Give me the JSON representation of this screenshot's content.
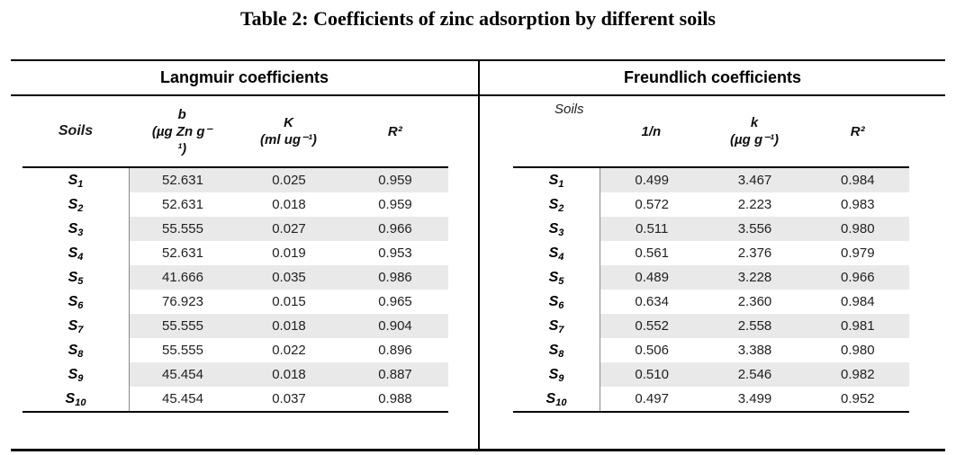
{
  "title": "Table 2: Coefficients of zinc adsorption by different soils",
  "langmuir": {
    "section_title": "Langmuir coefficients",
    "headers": {
      "soils": "Soils",
      "b": [
        "b",
        "(µg Zn g⁻",
        "¹)"
      ],
      "K": [
        "K",
        "(ml ug⁻¹)"
      ],
      "r2": "R²"
    },
    "rows": [
      {
        "soil": "S",
        "sub": "1",
        "c1": "52.631",
        "c2": "0.025",
        "c3": "0.959"
      },
      {
        "soil": "S",
        "sub": "2",
        "c1": "52.631",
        "c2": "0.018",
        "c3": "0.959"
      },
      {
        "soil": "S",
        "sub": "3",
        "c1": "55.555",
        "c2": "0.027",
        "c3": "0.966"
      },
      {
        "soil": "S",
        "sub": "4",
        "c1": "52.631",
        "c2": "0.019",
        "c3": "0.953"
      },
      {
        "soil": "S",
        "sub": "5",
        "c1": "41.666",
        "c2": "0.035",
        "c3": "0.986"
      },
      {
        "soil": "S",
        "sub": "6",
        "c1": "76.923",
        "c2": "0.015",
        "c3": "0.965"
      },
      {
        "soil": "S",
        "sub": "7",
        "c1": "55.555",
        "c2": "0.018",
        "c3": "0.904"
      },
      {
        "soil": "S",
        "sub": "8",
        "c1": "55.555",
        "c2": "0.022",
        "c3": "0.896"
      },
      {
        "soil": "S",
        "sub": "9",
        "c1": "45.454",
        "c2": "0.018",
        "c3": "0.887"
      },
      {
        "soil": "S",
        "sub": "10",
        "c1": "45.454",
        "c2": "0.037",
        "c3": "0.988"
      }
    ]
  },
  "freundlich": {
    "section_title": "Freundlich coefficients",
    "headers": {
      "soils": "Soils",
      "n": "1/n",
      "k": [
        "k",
        "(µg g⁻¹)"
      ],
      "r2": "R²"
    },
    "rows": [
      {
        "soil": "S",
        "sub": "1",
        "c1": "0.499",
        "c2": "3.467",
        "c3": "0.984"
      },
      {
        "soil": "S",
        "sub": "2",
        "c1": "0.572",
        "c2": "2.223",
        "c3": "0.983"
      },
      {
        "soil": "S",
        "sub": "3",
        "c1": "0.511",
        "c2": "3.556",
        "c3": "0.980"
      },
      {
        "soil": "S",
        "sub": "4",
        "c1": "0.561",
        "c2": "2.376",
        "c3": "0.979"
      },
      {
        "soil": "S",
        "sub": "5",
        "c1": "0.489",
        "c2": "3.228",
        "c3": "0.966"
      },
      {
        "soil": "S",
        "sub": "6",
        "c1": "0.634",
        "c2": "2.360",
        "c3": "0.984"
      },
      {
        "soil": "S",
        "sub": "7",
        "c1": "0.552",
        "c2": "2.558",
        "c3": "0.981"
      },
      {
        "soil": "S",
        "sub": "8",
        "c1": "0.506",
        "c2": "3.388",
        "c3": "0.980"
      },
      {
        "soil": "S",
        "sub": "9",
        "c1": "0.510",
        "c2": "2.546",
        "c3": "0.982"
      },
      {
        "soil": "S",
        "sub": "10",
        "c1": "0.497",
        "c2": "3.499",
        "c3": "0.952"
      }
    ]
  }
}
